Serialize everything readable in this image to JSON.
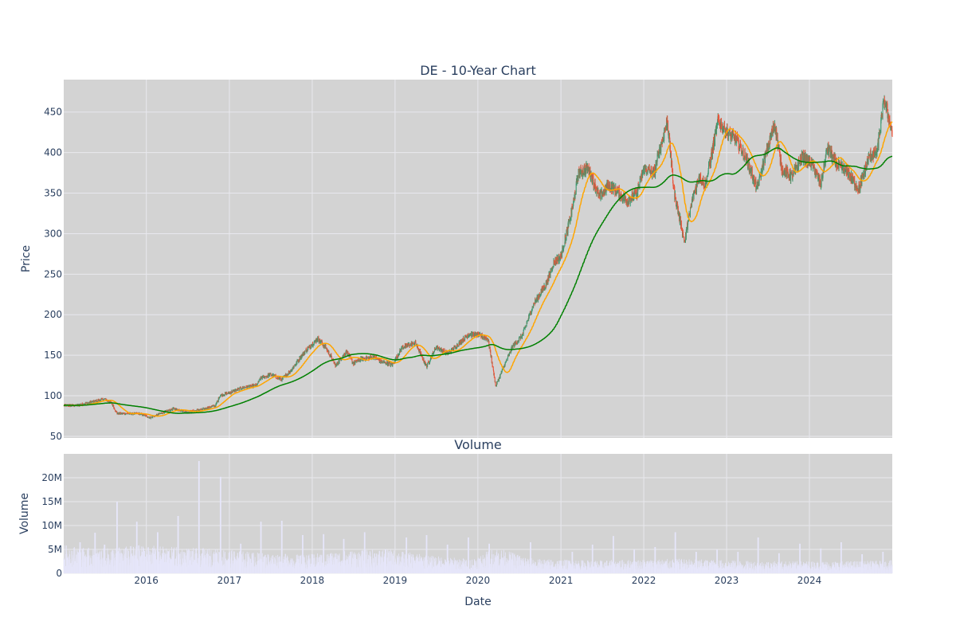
{
  "chart_data": {
    "type": "candlestick",
    "title": "DE - 10-Year Chart",
    "volume_title": "Volume",
    "xlabel": "Date",
    "ylabel": "Price",
    "volume_ylabel": "Volume",
    "x_range": [
      "2015-01-02",
      "2024-12-31"
    ],
    "x_ticks": [
      "2016",
      "2017",
      "2018",
      "2019",
      "2020",
      "2021",
      "2022",
      "2023",
      "2024"
    ],
    "price_ylim": [
      48,
      490
    ],
    "price_ticks": [
      "50",
      "100",
      "150",
      "200",
      "250",
      "300",
      "350",
      "400",
      "450"
    ],
    "price_tick_values": [
      50,
      100,
      150,
      200,
      250,
      300,
      350,
      400,
      450
    ],
    "volume_ylim": [
      0,
      25000000
    ],
    "volume_ticks": [
      "0",
      "5M",
      "10M",
      "15M",
      "20M"
    ],
    "volume_tick_values": [
      0,
      5000000,
      10000000,
      15000000,
      20000000
    ],
    "grid": true,
    "colors": {
      "plot_bg": "#d3d3d3",
      "grid": "#e8e8ee",
      "up": "#3d9970",
      "down": "#e8543a",
      "ma_short": "#ffa500",
      "ma_long": "#008000",
      "volume": "#e6e6fa"
    },
    "price_path": [
      [
        "2015-01-02",
        88
      ],
      [
        "2015-03-01",
        88
      ],
      [
        "2015-05-01",
        92
      ],
      [
        "2015-07-01",
        96
      ],
      [
        "2015-08-01",
        91
      ],
      [
        "2015-08-25",
        78
      ],
      [
        "2015-10-01",
        78
      ],
      [
        "2015-12-01",
        78
      ],
      [
        "2016-01-20",
        73
      ],
      [
        "2016-03-01",
        78
      ],
      [
        "2016-05-01",
        84
      ],
      [
        "2016-07-01",
        80
      ],
      [
        "2016-09-01",
        83
      ],
      [
        "2016-11-01",
        88
      ],
      [
        "2016-11-20",
        100
      ],
      [
        "2017-01-01",
        104
      ],
      [
        "2017-03-01",
        110
      ],
      [
        "2017-05-01",
        113
      ],
      [
        "2017-05-20",
        122
      ],
      [
        "2017-07-01",
        126
      ],
      [
        "2017-08-20",
        120
      ],
      [
        "2017-10-01",
        132
      ],
      [
        "2017-12-01",
        155
      ],
      [
        "2018-01-25",
        170
      ],
      [
        "2018-03-01",
        160
      ],
      [
        "2018-04-15",
        137
      ],
      [
        "2018-06-01",
        155
      ],
      [
        "2018-07-01",
        140
      ],
      [
        "2018-08-01",
        145
      ],
      [
        "2018-10-01",
        148
      ],
      [
        "2018-11-01",
        142
      ],
      [
        "2018-12-20",
        138
      ],
      [
        "2019-02-01",
        160
      ],
      [
        "2019-04-01",
        165
      ],
      [
        "2019-05-20",
        136
      ],
      [
        "2019-07-01",
        160
      ],
      [
        "2019-08-20",
        152
      ],
      [
        "2019-10-01",
        162
      ],
      [
        "2019-11-20",
        176
      ],
      [
        "2020-01-01",
        175
      ],
      [
        "2020-02-15",
        170
      ],
      [
        "2020-03-20",
        112
      ],
      [
        "2020-05-01",
        140
      ],
      [
        "2020-06-01",
        160
      ],
      [
        "2020-07-15",
        175
      ],
      [
        "2020-09-01",
        212
      ],
      [
        "2020-11-01",
        240
      ],
      [
        "2020-12-01",
        265
      ],
      [
        "2021-01-01",
        272
      ],
      [
        "2021-02-20",
        330
      ],
      [
        "2021-03-20",
        375
      ],
      [
        "2021-05-01",
        380
      ],
      [
        "2021-06-20",
        345
      ],
      [
        "2021-08-01",
        360
      ],
      [
        "2021-09-15",
        350
      ],
      [
        "2021-10-20",
        340
      ],
      [
        "2021-12-01",
        350
      ],
      [
        "2022-01-01",
        380
      ],
      [
        "2022-02-15",
        375
      ],
      [
        "2022-04-15",
        440
      ],
      [
        "2022-05-15",
        350
      ],
      [
        "2022-06-30",
        290
      ],
      [
        "2022-08-01",
        340
      ],
      [
        "2022-09-01",
        370
      ],
      [
        "2022-10-01",
        360
      ],
      [
        "2022-11-25",
        440
      ],
      [
        "2023-01-01",
        425
      ],
      [
        "2023-02-15",
        415
      ],
      [
        "2023-04-01",
        390
      ],
      [
        "2023-05-15",
        355
      ],
      [
        "2023-06-15",
        390
      ],
      [
        "2023-08-01",
        435
      ],
      [
        "2023-09-01",
        380
      ],
      [
        "2023-10-15",
        370
      ],
      [
        "2023-12-01",
        395
      ],
      [
        "2024-01-15",
        385
      ],
      [
        "2024-02-20",
        360
      ],
      [
        "2024-03-20",
        405
      ],
      [
        "2024-05-01",
        385
      ],
      [
        "2024-06-20",
        375
      ],
      [
        "2024-08-05",
        355
      ],
      [
        "2024-09-20",
        395
      ],
      [
        "2024-10-25",
        400
      ],
      [
        "2024-11-25",
        465
      ],
      [
        "2024-12-31",
        425
      ]
    ],
    "volume_path": [
      [
        "2015-01-02",
        3500000
      ],
      [
        "2015-06-01",
        3000000
      ],
      [
        "2015-12-01",
        3500000
      ],
      [
        "2016-06-01",
        3200000
      ],
      [
        "2016-12-01",
        3000000
      ],
      [
        "2017-06-01",
        2500000
      ],
      [
        "2017-12-01",
        2300000
      ],
      [
        "2018-06-01",
        2800000
      ],
      [
        "2018-12-01",
        3000000
      ],
      [
        "2019-06-01",
        2200000
      ],
      [
        "2019-12-01",
        1800000
      ],
      [
        "2020-03-20",
        3200000
      ],
      [
        "2020-09-01",
        1800000
      ],
      [
        "2021-06-01",
        1600000
      ],
      [
        "2022-06-01",
        1800000
      ],
      [
        "2023-06-01",
        1500000
      ],
      [
        "2024-06-01",
        1500000
      ],
      [
        "2024-12-31",
        1600000
      ]
    ],
    "volume_spikes": [
      [
        "2015-03-15",
        6500000
      ],
      [
        "2015-05-20",
        8500000
      ],
      [
        "2015-07-01",
        6000000
      ],
      [
        "2015-08-25",
        15000000
      ],
      [
        "2015-11-20",
        10800000
      ],
      [
        "2016-02-20",
        8600000
      ],
      [
        "2016-05-20",
        12000000
      ],
      [
        "2016-08-20",
        23500000
      ],
      [
        "2016-11-23",
        20200000
      ],
      [
        "2017-02-20",
        6200000
      ],
      [
        "2017-05-20",
        10800000
      ],
      [
        "2017-08-20",
        11000000
      ],
      [
        "2017-11-20",
        8000000
      ],
      [
        "2018-02-20",
        8200000
      ],
      [
        "2018-05-20",
        7200000
      ],
      [
        "2018-08-20",
        8600000
      ],
      [
        "2018-11-20",
        5000000
      ],
      [
        "2019-02-20",
        7500000
      ],
      [
        "2019-05-20",
        8000000
      ],
      [
        "2019-08-20",
        6000000
      ],
      [
        "2019-11-20",
        7500000
      ],
      [
        "2020-02-20",
        6200000
      ],
      [
        "2020-08-20",
        6500000
      ],
      [
        "2021-02-20",
        4500000
      ],
      [
        "2021-05-20",
        6000000
      ],
      [
        "2021-08-20",
        7800000
      ],
      [
        "2021-11-20",
        5000000
      ],
      [
        "2022-02-20",
        5500000
      ],
      [
        "2022-05-20",
        8600000
      ],
      [
        "2022-08-20",
        4500000
      ],
      [
        "2022-11-20",
        5000000
      ],
      [
        "2023-02-20",
        4500000
      ],
      [
        "2023-05-20",
        7500000
      ],
      [
        "2023-08-20",
        4200000
      ],
      [
        "2023-11-20",
        6200000
      ],
      [
        "2024-02-20",
        5200000
      ],
      [
        "2024-05-20",
        6500000
      ],
      [
        "2024-08-20",
        4000000
      ],
      [
        "2024-11-20",
        4500000
      ]
    ]
  }
}
